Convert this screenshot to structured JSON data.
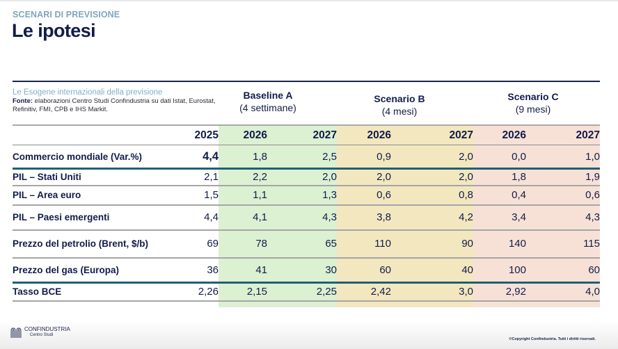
{
  "header": {
    "kicker": "SCENARI DI PREVISIONE",
    "title": "Le ipotesi"
  },
  "source": {
    "title": "Le Esogene internazionali della previsione",
    "label": "Fonte:",
    "text": " elaborazioni Centro Studi Confindustria su dati Istat, Eurostat, Refinitiv, FMI, CPB e IHS Markit."
  },
  "scenarios": [
    {
      "name": "Baseline A",
      "sub": "(4 settimane)",
      "color": "#dcf0d2"
    },
    {
      "name": "Scenario B",
      "sub": "(4 mesi)",
      "color": "#f3e7bf"
    },
    {
      "name": "Scenario C",
      "sub": "(9 mesi)",
      "color": "#f7e1d6"
    }
  ],
  "table": {
    "years": [
      "2025",
      "2026",
      "2027",
      "2026",
      "2027",
      "2026",
      "2027"
    ],
    "rows": [
      {
        "label": "Commercio mondiale (Var.%)",
        "values": [
          "4,4",
          "1,8",
          "2,5",
          "0,9",
          "2,0",
          "0,0",
          "1,0"
        ]
      },
      {
        "label": "PIL – Stati Uniti",
        "values": [
          "2,1",
          "2,2",
          "2,0",
          "2,0",
          "2,0",
          "1,8",
          "1,9"
        ]
      },
      {
        "label": "PIL – Area euro",
        "values": [
          "1,5",
          "1,1",
          "1,3",
          "0,6",
          "0,8",
          "0,4",
          "0,6"
        ]
      },
      {
        "label": "PIL – Paesi emergenti",
        "values": [
          "4,4",
          "4,1",
          "4,3",
          "3,8",
          "4,2",
          "3,4",
          "4,3"
        ]
      },
      {
        "label": "Prezzo del petrolio (Brent, $/b)",
        "values": [
          "69",
          "78",
          "65",
          "110",
          "90",
          "140",
          "115"
        ]
      },
      {
        "label": "Prezzo del gas (Europa)",
        "values": [
          "36",
          "41",
          "30",
          "60",
          "40",
          "100",
          "60"
        ]
      },
      {
        "label": "Tasso BCE",
        "values": [
          "2,26",
          "2,15",
          "2,25",
          "2,42",
          "3,0",
          "2,92",
          "4,0"
        ]
      }
    ]
  },
  "footer": {
    "logo_name": "CONFINDUSTRIA",
    "logo_sub": "Centro Studi",
    "copyright": "©Copyright Confindustria. Tutti i diritti riservati."
  }
}
